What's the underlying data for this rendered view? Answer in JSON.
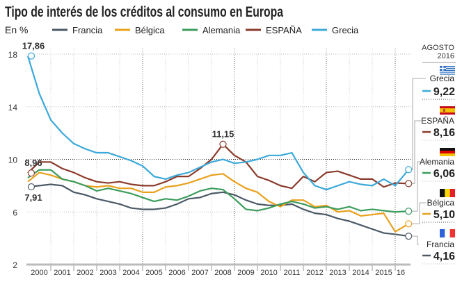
{
  "chart_data": {
    "type": "line",
    "title": "Tipo de interés de los créditos al consumo en Europa",
    "ylabel": "En %",
    "ylim": [
      2,
      18
    ],
    "yticks": [
      2,
      6,
      10,
      14,
      18
    ],
    "xticks": [
      "2000",
      "2001",
      "2002",
      "2003",
      "2004",
      "2005",
      "2006",
      "2007",
      "2008",
      "2009",
      "2010",
      "2011",
      "2012",
      "2013",
      "2014",
      "2015",
      "16"
    ],
    "grid": true,
    "legend": "top",
    "latest_header": [
      "AGOSTO",
      "2016"
    ],
    "x": [
      "2000-01",
      "2000-07",
      "2001-01",
      "2001-07",
      "2002-01",
      "2002-07",
      "2003-01",
      "2003-07",
      "2004-01",
      "2004-07",
      "2005-01",
      "2005-07",
      "2006-01",
      "2006-07",
      "2007-01",
      "2007-07",
      "2008-01",
      "2008-07",
      "2009-01",
      "2009-07",
      "2010-01",
      "2010-07",
      "2011-01",
      "2011-07",
      "2012-01",
      "2012-07",
      "2013-01",
      "2013-07",
      "2014-01",
      "2014-07",
      "2015-01",
      "2015-07",
      "2016-01",
      "2016-08"
    ],
    "series": [
      {
        "name": "Francia",
        "color": "#4b5966",
        "latest": "4,16",
        "flag": "france-flag",
        "values": [
          7.91,
          8.0,
          8.1,
          8.0,
          7.5,
          7.3,
          7.0,
          6.8,
          6.6,
          6.3,
          6.2,
          6.2,
          6.3,
          6.6,
          7.0,
          7.1,
          7.4,
          7.5,
          7.3,
          6.9,
          6.6,
          6.5,
          6.5,
          6.6,
          6.2,
          5.9,
          5.8,
          5.5,
          5.3,
          5.0,
          4.7,
          4.4,
          4.3,
          4.16
        ]
      },
      {
        "name": "Bélgica",
        "color": "#e9a11d",
        "latest": "5,10",
        "flag": "belgium-flag",
        "values": [
          8.3,
          9.0,
          8.8,
          8.5,
          8.3,
          8.0,
          7.9,
          8.0,
          7.8,
          7.8,
          7.5,
          7.5,
          7.9,
          8.0,
          8.2,
          8.5,
          8.8,
          8.9,
          8.3,
          7.8,
          7.5,
          6.8,
          6.4,
          6.9,
          6.9,
          6.4,
          6.5,
          6.0,
          6.1,
          5.7,
          5.8,
          5.9,
          4.5,
          5.1
        ]
      },
      {
        "name": "Alemania",
        "color": "#3b9c5c",
        "latest": "6,06",
        "flag": "germany-flag",
        "values": [
          8.6,
          9.2,
          9.2,
          8.5,
          8.3,
          8.0,
          7.6,
          7.8,
          7.6,
          7.4,
          7.1,
          6.8,
          7.0,
          6.9,
          7.2,
          7.6,
          7.8,
          7.7,
          7.0,
          6.2,
          6.1,
          6.3,
          6.6,
          6.8,
          6.6,
          6.3,
          6.4,
          6.2,
          6.4,
          6.1,
          6.2,
          6.1,
          6.0,
          6.06
        ]
      },
      {
        "name": "ESPAÑA",
        "color": "#8a3b2b",
        "latest": "8,16",
        "flag": "spain-flag",
        "values": [
          8.96,
          9.8,
          9.8,
          9.3,
          9.0,
          8.6,
          8.3,
          8.2,
          8.3,
          8.1,
          8.0,
          8.0,
          8.3,
          8.7,
          8.7,
          9.3,
          10.0,
          11.15,
          10.3,
          9.8,
          8.7,
          8.4,
          8.0,
          7.8,
          8.7,
          8.3,
          9.0,
          9.1,
          8.8,
          8.5,
          8.5,
          7.9,
          8.2,
          8.16
        ]
      },
      {
        "name": "Grecia",
        "color": "#3ba9d9",
        "latest": "9,22",
        "flag": "greece-flag",
        "values": [
          17.86,
          15.0,
          13.0,
          12.0,
          11.2,
          10.8,
          10.5,
          10.5,
          10.2,
          9.9,
          9.5,
          8.7,
          8.5,
          8.8,
          9.0,
          9.4,
          9.8,
          10.0,
          9.7,
          9.8,
          10.0,
          10.3,
          10.3,
          10.5,
          9.0,
          8.0,
          7.7,
          8.0,
          8.3,
          8.1,
          8.0,
          8.5,
          8.0,
          9.22
        ]
      }
    ],
    "annotations": [
      {
        "text": "17,86",
        "series": "Grecia",
        "x": "2000-01"
      },
      {
        "text": "8,96",
        "series": "ESPAÑA",
        "x": "2000-01"
      },
      {
        "text": "7,91",
        "series": "Francia",
        "x": "2000-01"
      },
      {
        "text": "11,15",
        "series": "ESPAÑA",
        "x": "2008-07"
      }
    ]
  }
}
